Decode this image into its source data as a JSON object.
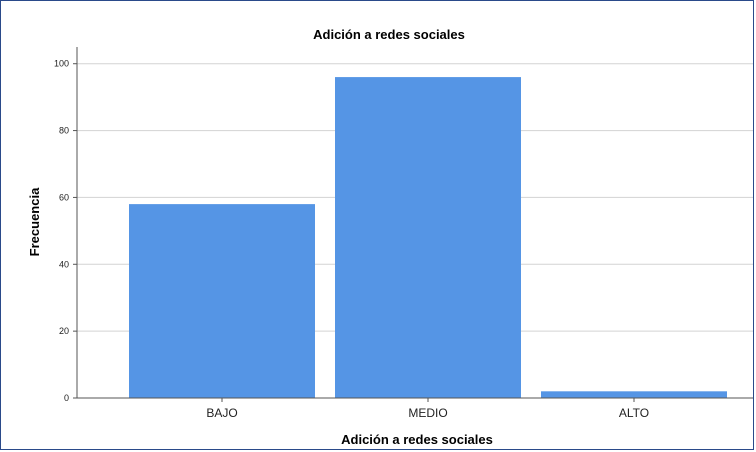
{
  "chart_data": {
    "type": "bar",
    "title": "Adición a redes sociales",
    "xlabel": "Adición a redes sociales",
    "ylabel": "Frecuencia",
    "categories": [
      "BAJO",
      "MEDIO",
      "ALTO"
    ],
    "values": [
      58,
      96,
      2
    ],
    "ylim": [
      0,
      105
    ],
    "yticks": [
      0,
      20,
      40,
      60,
      80,
      100
    ],
    "grid": true,
    "bar_color": "#5595e5"
  }
}
